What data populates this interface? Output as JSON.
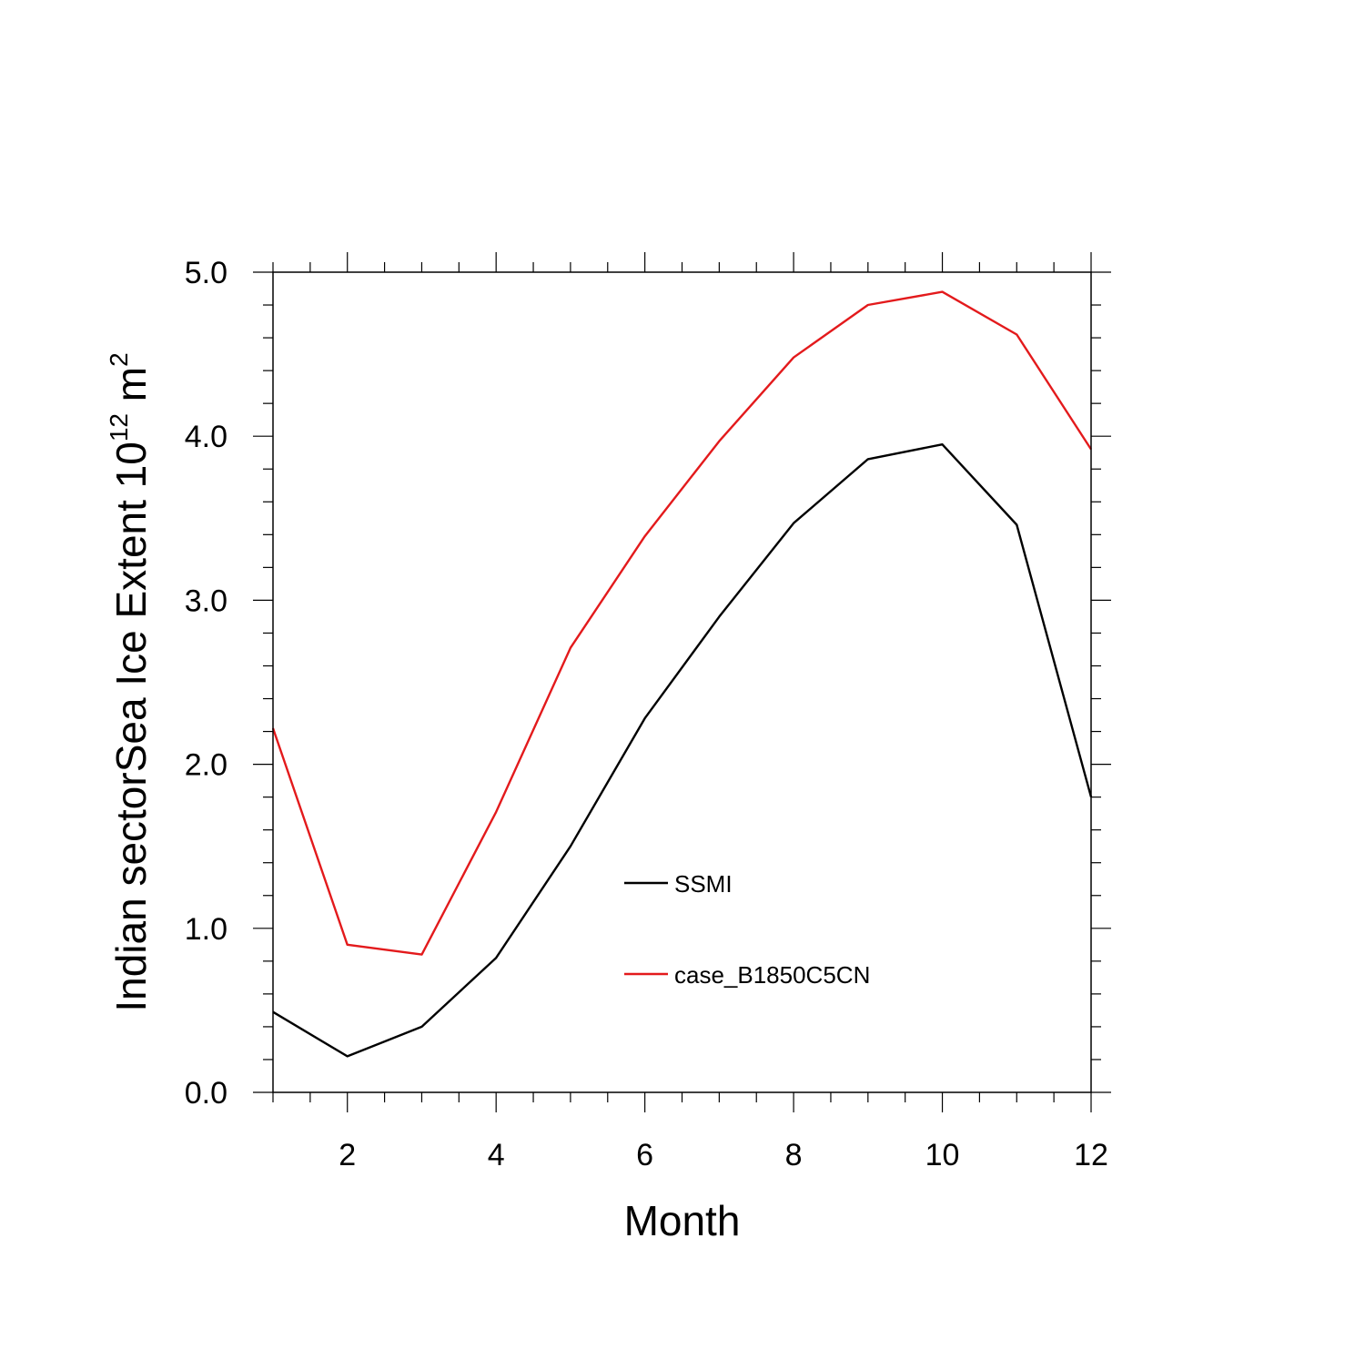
{
  "chart_data": {
    "type": "line",
    "xlabel": "Month",
    "ylabel": {
      "text": "Indian sectorSea Ice Extent 10",
      "exponent": "12",
      "unit": " m",
      "unit_exponent": "2"
    },
    "xlim": [
      1,
      12
    ],
    "ylim": [
      0,
      5
    ],
    "x_major_ticks": [
      2,
      4,
      6,
      8,
      10,
      12
    ],
    "x_tick_labels": [
      "2",
      "4",
      "6",
      "8",
      "10",
      "12"
    ],
    "y_major_ticks": [
      0,
      1,
      2,
      3,
      4,
      5
    ],
    "y_tick_labels": [
      "0.0",
      "1.0",
      "2.0",
      "3.0",
      "4.0",
      "5.0"
    ],
    "grid": false,
    "legend_position": "center-right",
    "x": [
      1,
      2,
      3,
      4,
      5,
      6,
      7,
      8,
      9,
      10,
      11,
      12
    ],
    "series": [
      {
        "name": "SSMI",
        "color": "#000000",
        "values": [
          0.49,
          0.22,
          0.4,
          0.82,
          1.5,
          2.28,
          2.9,
          3.47,
          3.86,
          3.95,
          3.46,
          1.8
        ]
      },
      {
        "name": "case_B1850C5CN",
        "color": "#e31a1c",
        "values": [
          2.22,
          0.9,
          0.84,
          1.71,
          2.71,
          3.39,
          3.97,
          4.48,
          4.8,
          4.88,
          4.62,
          3.92
        ]
      }
    ]
  }
}
